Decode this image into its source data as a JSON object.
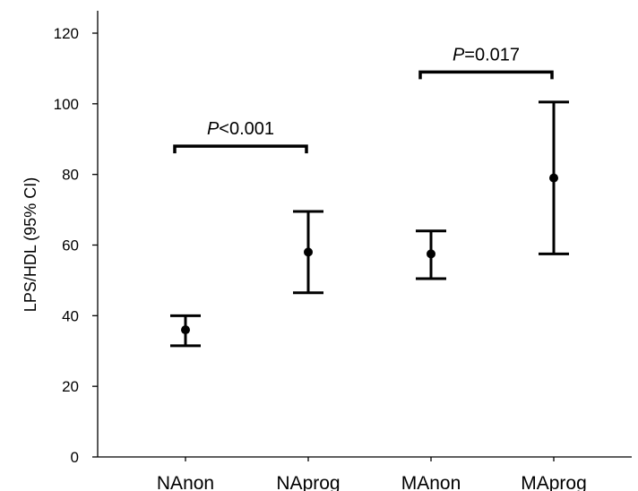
{
  "chart_data": {
    "type": "scatter",
    "subtype": "error-bar",
    "ylabel": "LPS/HDL (95% CI)",
    "ylim": [
      0,
      120
    ],
    "yticks": [
      0,
      20,
      40,
      60,
      80,
      100,
      120
    ],
    "categories": [
      "NAnon",
      "NAprog",
      "MAnon",
      "MAprog"
    ],
    "points": [
      {
        "category": "NAnon",
        "mean": 36,
        "lower": 31.5,
        "upper": 40
      },
      {
        "category": "NAprog",
        "mean": 58,
        "lower": 46.5,
        "upper": 69.5
      },
      {
        "category": "MAnon",
        "mean": 57.5,
        "lower": 50.5,
        "upper": 64
      },
      {
        "category": "MAprog",
        "mean": 79,
        "lower": 57.5,
        "upper": 100.5
      }
    ],
    "comparisons": [
      {
        "from": "NAnon",
        "to": "NAprog",
        "y": 88,
        "label_italic": "P",
        "label_rest": "<0.001"
      },
      {
        "from": "MAnon",
        "to": "MAprog",
        "y": 109,
        "label_italic": "P",
        "label_rest": "=0.017"
      }
    ],
    "grid": false,
    "legend": "none"
  }
}
